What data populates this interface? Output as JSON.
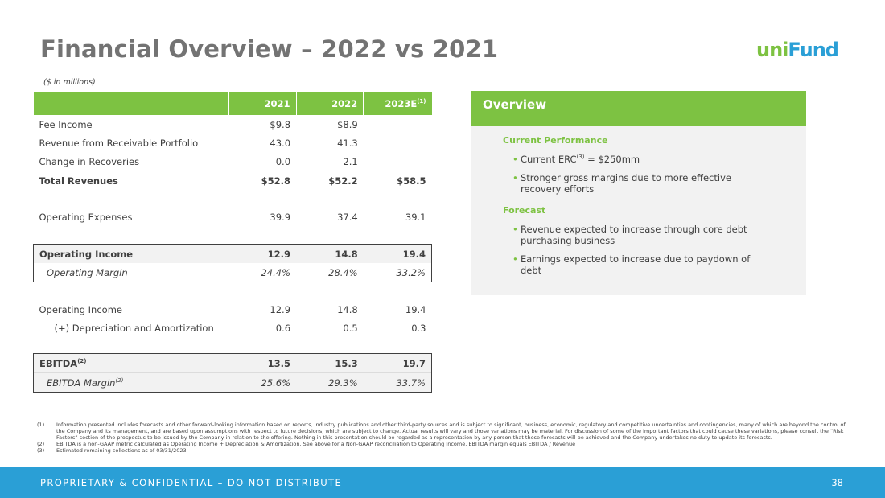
{
  "title": "Financial Overview – 2022 vs 2021",
  "logo": {
    "part1": "uni",
    "part2": "Fund"
  },
  "units_note": "($ in millions)",
  "table": {
    "headers": [
      "2021",
      "2022",
      "2023E"
    ],
    "header_sup": "(1)",
    "rows": {
      "fee_income": {
        "label": "Fee Income",
        "v2021": "$9.8",
        "v2022": "$8.9",
        "v2023": ""
      },
      "revenue_portfolio": {
        "label": "Revenue from Receivable Portfolio",
        "v2021": "43.0",
        "v2022": "41.3",
        "v2023": ""
      },
      "change_recoveries": {
        "label": "Change in Recoveries",
        "v2021": "0.0",
        "v2022": "2.1",
        "v2023": ""
      },
      "total_revenues": {
        "label": "Total Revenues",
        "v2021": "$52.8",
        "v2022": "$52.2",
        "v2023": "$58.5"
      },
      "operating_expenses": {
        "label": "Operating Expenses",
        "v2021": "39.9",
        "v2022": "37.4",
        "v2023": "39.1"
      },
      "operating_income": {
        "label": "Operating Income",
        "v2021": "12.9",
        "v2022": "14.8",
        "v2023": "19.4"
      },
      "operating_margin": {
        "label": "Operating Margin",
        "v2021": "24.4%",
        "v2022": "28.4%",
        "v2023": "33.2%"
      },
      "operating_income_2": {
        "label": "Operating Income",
        "v2021": "12.9",
        "v2022": "14.8",
        "v2023": "19.4"
      },
      "depreciation": {
        "label": "(+) Depreciation and Amortization",
        "v2021": "0.6",
        "v2022": "0.5",
        "v2023": "0.3"
      },
      "ebitda": {
        "label": "EBITDA",
        "sup": "(2)",
        "v2021": "13.5",
        "v2022": "15.3",
        "v2023": "19.7"
      },
      "ebitda_margin": {
        "label": "EBITDA Margin",
        "sup": "(2)",
        "v2021": "25.6%",
        "v2022": "29.3%",
        "v2023": "33.7%"
      }
    }
  },
  "overview": {
    "heading": "Overview",
    "current_title": "Current Performance",
    "current_b1_pre": "Current ERC",
    "current_b1_sup": "(3)",
    "current_b1_post": " = $250mm",
    "current_b2": "Stronger gross margins due to more effective recovery efforts",
    "forecast_title": "Forecast",
    "forecast_b1": "Revenue expected to increase through core debt  purchasing business",
    "forecast_b2": "Earnings expected to increase due to paydown of debt"
  },
  "footnotes": [
    {
      "num": "(1)",
      "text": "Information presented includes forecasts and other forward-looking information based on reports, industry publications and other third-party sources and is subject to significant, business, economic, regulatory and competitive uncertainties and   contingencies, many of which are beyond the control of the Company and its management, and are based upon assumptions with respect to future decisions, which are subject to change. Actual results will vary and those variations may be material. For discussion of some of the important factors that could cause these variations, please consult the “Risk Factors” section of the prospectus to be issued by the Company in relation to the offering. Nothing in this presentation should be regarded as a   representation by any person that these forecasts will be achieved and the Company undertakes no duty to update its   forecasts."
    },
    {
      "num": "(2)",
      "text": "EBITDA is a non-GAAP metric calculated as Operating Income + Depreciation & Amortization. See above for a Non-GAAP reconciliation to Operating Income. EBITDA margin equals EBITDA / Revenue"
    },
    {
      "num": "(3)",
      "text": "Estimated remaining collections as of 03/31/2023"
    }
  ],
  "footer": {
    "text": "PROPRIETARY & CONFIDENTIAL – DO NOT DISTRIBUTE",
    "page": "38"
  },
  "colors": {
    "green": "#7dc242",
    "blue": "#2a9fd6",
    "gray_title": "#737373"
  }
}
